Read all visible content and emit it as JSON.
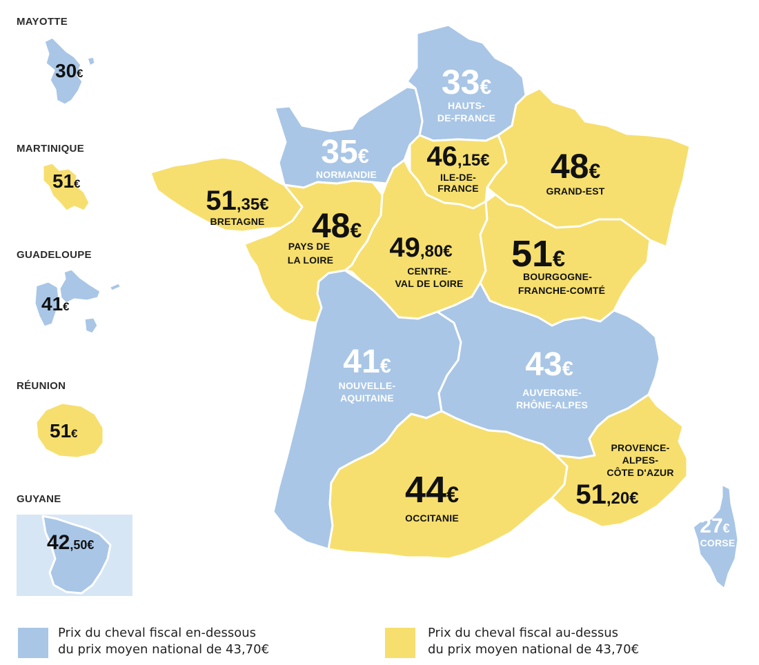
{
  "colors": {
    "below": "#a9c6e6",
    "above": "#f6df6e",
    "guyane_bg": "#d7e6f5"
  },
  "overseas": [
    {
      "id": "mayotte",
      "name": "MAYOTTE",
      "main": "30",
      "dec": "",
      "cur": "€",
      "group": "below"
    },
    {
      "id": "martinique",
      "name": "MARTINIQUE",
      "main": "51",
      "dec": "",
      "cur": "€",
      "group": "above"
    },
    {
      "id": "guadeloupe",
      "name": "GUADELOUPE",
      "main": "41",
      "dec": "",
      "cur": "€",
      "group": "below"
    },
    {
      "id": "reunion",
      "name": "RÉUNION",
      "main": "51",
      "dec": "",
      "cur": "€",
      "group": "above"
    },
    {
      "id": "guyane",
      "name": "GUYANE",
      "main": "42",
      "dec": ",50",
      "cur": "€",
      "group": "below"
    }
  ],
  "regions": [
    {
      "id": "hauts-de-france",
      "main": "33",
      "dec": "",
      "cur": "€",
      "name": [
        "HAUTS-",
        "DE-FRANCE"
      ],
      "group": "below"
    },
    {
      "id": "normandie",
      "main": "35",
      "dec": "",
      "cur": "€",
      "name": [
        "NORMANDIE"
      ],
      "group": "below"
    },
    {
      "id": "ile-de-france",
      "main": "46",
      "dec": ",15",
      "cur": "€",
      "name": [
        "ILE-DE-",
        "FRANCE"
      ],
      "group": "above"
    },
    {
      "id": "grand-est",
      "main": "48",
      "dec": "",
      "cur": "€",
      "name": [
        "GRAND-EST"
      ],
      "group": "above"
    },
    {
      "id": "bretagne",
      "main": "51",
      "dec": ",35",
      "cur": "€",
      "name": [
        "BRETAGNE"
      ],
      "group": "above"
    },
    {
      "id": "pays-de-la-loire",
      "main": "48",
      "dec": "",
      "cur": "€",
      "name": [
        "PAYS DE",
        "LA LOIRE"
      ],
      "group": "above"
    },
    {
      "id": "centre-val-de-loire",
      "main": "49",
      "dec": ",80",
      "cur": "€",
      "name": [
        "CENTRE-",
        "VAL DE LOIRE"
      ],
      "group": "above"
    },
    {
      "id": "bourgogne-franche-comte",
      "main": "51",
      "dec": "",
      "cur": "€",
      "name": [
        "BOURGOGNE-",
        "FRANCHE-COMTÉ"
      ],
      "group": "above"
    },
    {
      "id": "nouvelle-aquitaine",
      "main": "41",
      "dec": "",
      "cur": "€",
      "name": [
        "NOUVELLE-",
        "AQUITAINE"
      ],
      "group": "below"
    },
    {
      "id": "auvergne-rhone-alpes",
      "main": "43",
      "dec": "",
      "cur": "€",
      "name": [
        "AUVERGNE-",
        "RHÔNE-ALPES"
      ],
      "group": "below"
    },
    {
      "id": "occitanie",
      "main": "44",
      "dec": "",
      "cur": "€",
      "name": [
        "OCCITANIE"
      ],
      "group": "above"
    },
    {
      "id": "provence-alpes-cote-d-azur",
      "main": "51",
      "dec": ",20",
      "cur": "€",
      "name": [
        "PROVENCE-",
        "ALPES-",
        "CÔTE D'AZUR"
      ],
      "group": "above"
    },
    {
      "id": "corse",
      "main": "27",
      "dec": "",
      "cur": "€",
      "name": [
        "CORSE"
      ],
      "group": "below"
    }
  ],
  "legend": {
    "below": {
      "line1": "Prix du cheval fiscal en-dessous",
      "line2": "du prix moyen national de 43,70€"
    },
    "above": {
      "line1": "Prix du cheval fiscal au-dessus",
      "line2": "du prix moyen national de 43,70€"
    }
  }
}
